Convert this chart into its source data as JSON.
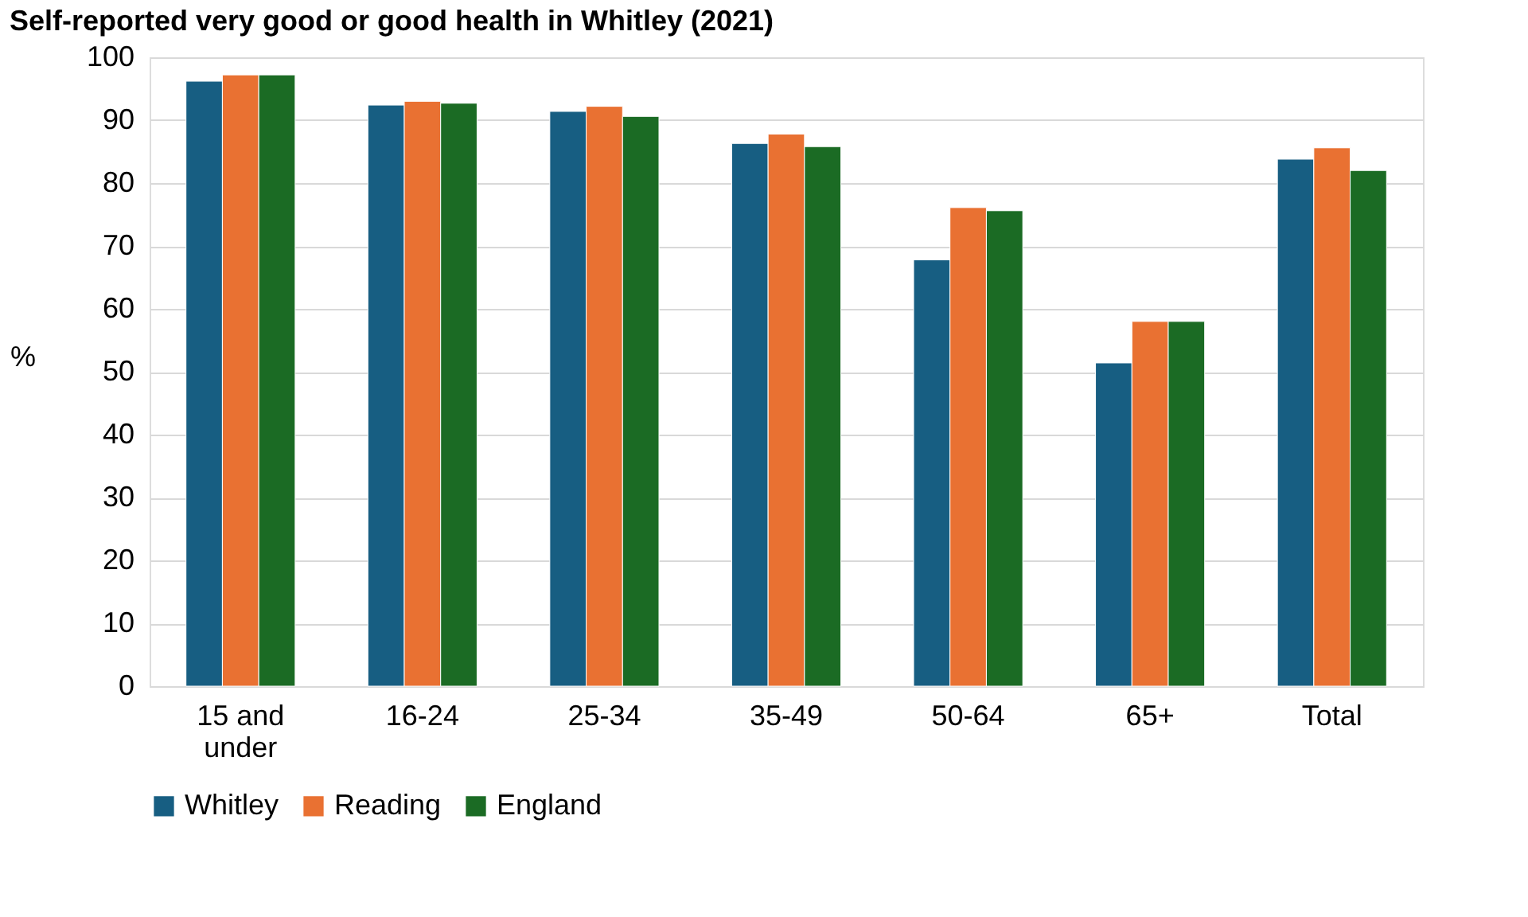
{
  "chart_data": {
    "type": "bar",
    "title": "Self-reported very good or good health in Whitley (2021)",
    "ylabel": "%",
    "categories": [
      "15 and under",
      "16-24",
      "25-34",
      "35-49",
      "50-64",
      "65+",
      "Total"
    ],
    "series": [
      {
        "name": "Whitley",
        "color": "#175e82",
        "values": [
          96.2,
          92.4,
          91.4,
          86.3,
          67.8,
          51.4,
          83.8
        ]
      },
      {
        "name": "Reading",
        "color": "#e97132",
        "values": [
          97.2,
          93.0,
          92.2,
          87.8,
          76.1,
          58.0,
          85.6
        ]
      },
      {
        "name": "England",
        "color": "#1b6b24",
        "values": [
          97.2,
          92.7,
          90.6,
          85.8,
          75.6,
          58.0,
          82.0
        ]
      }
    ],
    "ylim": [
      0,
      100
    ],
    "yticks": [
      0,
      10,
      20,
      30,
      40,
      50,
      60,
      70,
      80,
      90,
      100
    ],
    "grid": "y",
    "legend": "bottom"
  }
}
